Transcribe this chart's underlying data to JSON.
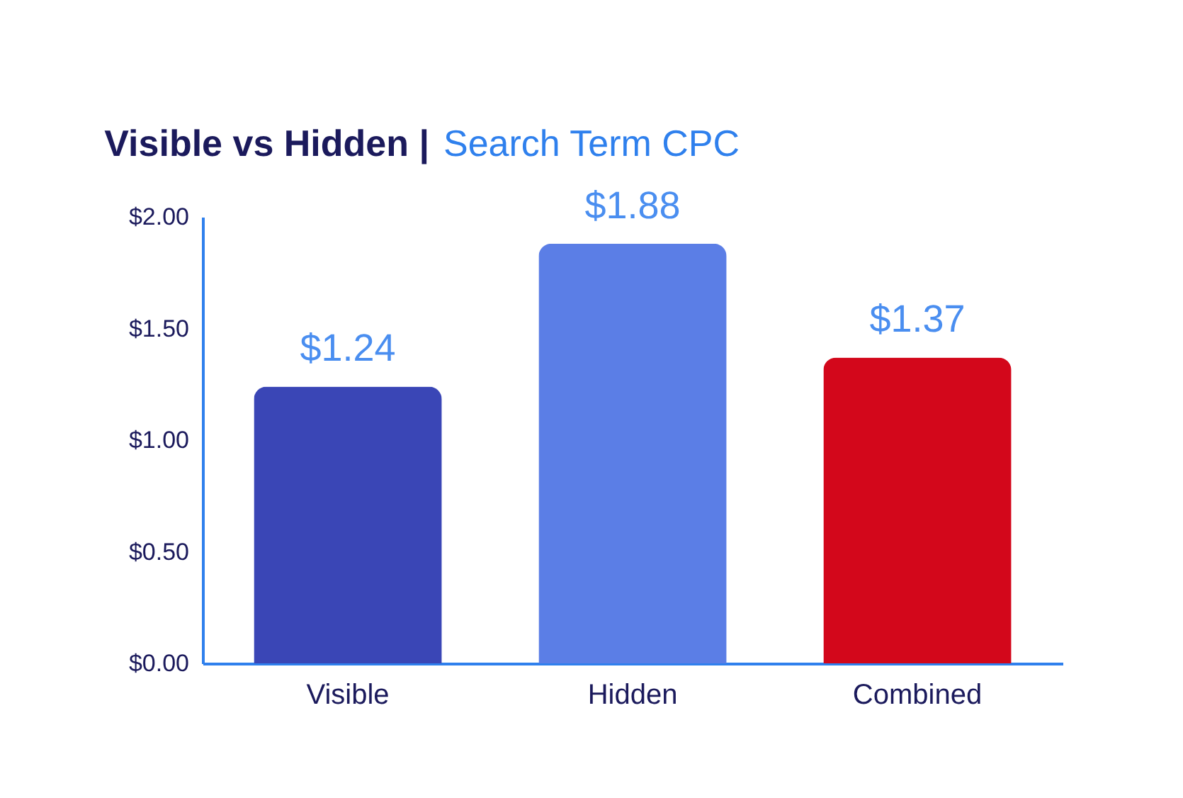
{
  "chart_data": {
    "type": "bar",
    "title": "Visible vs Hidden |",
    "subtitle": "Search Term CPC",
    "categories": [
      "Visible",
      "Hidden",
      "Combined"
    ],
    "values": [
      1.24,
      1.88,
      1.37
    ],
    "colors": [
      "#3a46b6",
      "#5b7ee6",
      "#d3071b"
    ],
    "value_labels": [
      "$1.24",
      "$1.88",
      "$1.37"
    ],
    "ylim": [
      0,
      2
    ],
    "yticks": [
      {
        "value": 0,
        "label": "$0.00"
      },
      {
        "value": 0.5,
        "label": "$0.50"
      },
      {
        "value": 1,
        "label": "$1.00"
      },
      {
        "value": 1.5,
        "label": "$1.50"
      },
      {
        "value": 2,
        "label": "$2.00"
      }
    ],
    "grid": false
  }
}
